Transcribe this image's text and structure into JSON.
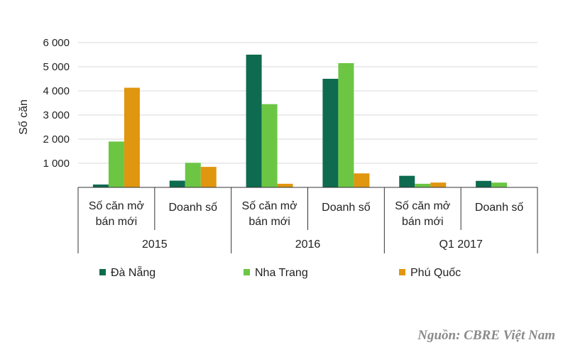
{
  "chart_data": {
    "type": "bar",
    "ylabel": "Số căn",
    "ylim": [
      0,
      6000
    ],
    "yticks": [
      1000,
      2000,
      3000,
      4000,
      5000,
      6000
    ],
    "ytick_labels": [
      "1 000",
      "2 000",
      "3 000",
      "4 000",
      "5 000",
      "6 000"
    ],
    "grid": true,
    "legend_position": "bottom",
    "groups": [
      {
        "label": "2015",
        "categories": [
          [
            "Số căn mở",
            "bán mới"
          ],
          [
            "Doanh số"
          ]
        ]
      },
      {
        "label": "2016",
        "categories": [
          [
            "Số căn mở",
            "bán mới"
          ],
          [
            "Doanh số"
          ]
        ]
      },
      {
        "label": "Q1 2017",
        "categories": [
          [
            "Số căn mở",
            "bán mới"
          ],
          [
            "Doanh số"
          ]
        ]
      }
    ],
    "series": [
      {
        "name": "Đà Nẵng",
        "color": "#0e6b4f",
        "values": [
          120,
          280,
          5500,
          4500,
          480,
          270
        ]
      },
      {
        "name": "Nha Trang",
        "color": "#6cc644",
        "values": [
          1900,
          1020,
          3450,
          5150,
          150,
          200
        ]
      },
      {
        "name": "Phú Quốc",
        "color": "#e0960f",
        "values": [
          4130,
          850,
          150,
          580,
          200,
          0
        ]
      }
    ]
  },
  "source_note": "Nguồn: CBRE Việt Nam"
}
